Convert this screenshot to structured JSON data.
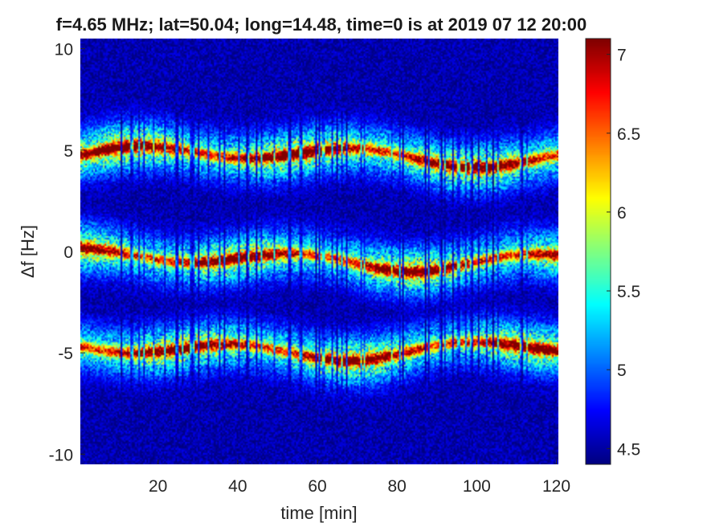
{
  "chart_data": {
    "type": "heatmap",
    "title": "f=4.65 MHz;  lat=50.04; long=14.48, time=0 is at 2019 07 12 20:00",
    "xlabel": "time [min]",
    "ylabel": "Δf [Hz]",
    "xlim": [
      0.5,
      120.5
    ],
    "ylim": [
      -10.5,
      10.5
    ],
    "xticks": [
      20,
      40,
      60,
      80,
      100,
      120
    ],
    "xtick_labels": [
      "20",
      "40",
      "60",
      "80",
      "100",
      "120"
    ],
    "yticks": [
      10,
      5,
      0,
      -5,
      -10
    ],
    "ytick_labels": [
      "10",
      "5",
      "0",
      "-5",
      "-10"
    ],
    "colorbar": {
      "range": [
        4.4,
        7.1
      ],
      "ticks": [
        7,
        6.5,
        6,
        5.5,
        5,
        4.5
      ],
      "tick_labels": [
        "7",
        "6.5",
        "6",
        "5.5",
        "5",
        "4.5"
      ],
      "colormap": "jet"
    },
    "bands": [
      {
        "center_freq_hz": 4.7,
        "peak_value": 7.1
      },
      {
        "center_freq_hz": -0.4,
        "peak_value": 7.0
      },
      {
        "center_freq_hz": -4.8,
        "peak_value": 7.0
      }
    ],
    "background_value": 4.5
  },
  "colors": {
    "background": "#00008f",
    "peak": "#800000"
  }
}
